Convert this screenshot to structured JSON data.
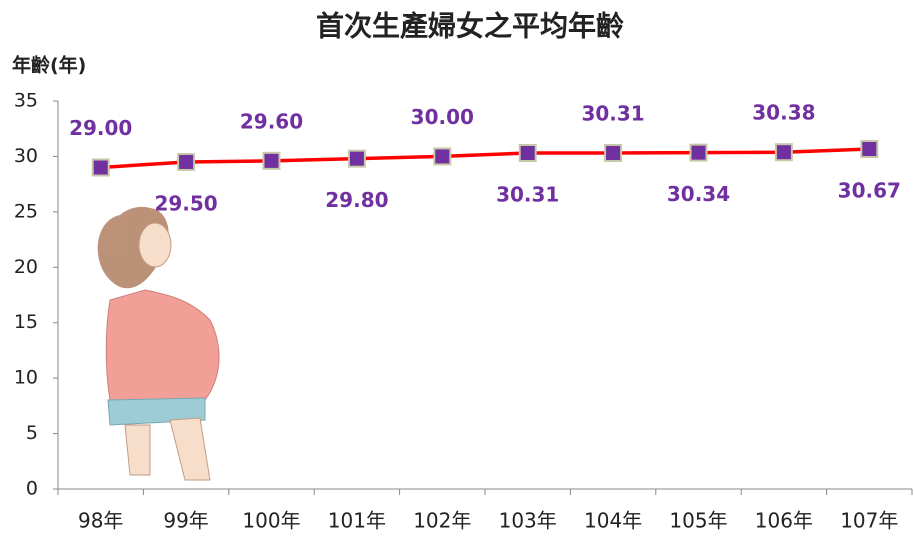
{
  "chart_data": {
    "type": "line",
    "title": "首次生產婦女之平均年齡",
    "y_label": "年齡(年)",
    "categories": [
      "98年",
      "99年",
      "100年",
      "101年",
      "102年",
      "103年",
      "104年",
      "105年",
      "106年",
      "107年"
    ],
    "values": [
      29.0,
      29.5,
      29.6,
      29.8,
      30.0,
      30.31,
      30.31,
      30.34,
      30.38,
      30.67
    ],
    "value_labels": [
      "29.00",
      "29.50",
      "29.60",
      "29.80",
      "30.00",
      "30.31",
      "30.31",
      "30.34",
      "30.38",
      "30.67"
    ],
    "color": "#ff0000",
    "marker_color": "#7030a0",
    "ylim": [
      0,
      35
    ],
    "yticks": [
      0,
      5,
      10,
      15,
      20,
      25,
      30,
      35
    ],
    "grid": false
  }
}
